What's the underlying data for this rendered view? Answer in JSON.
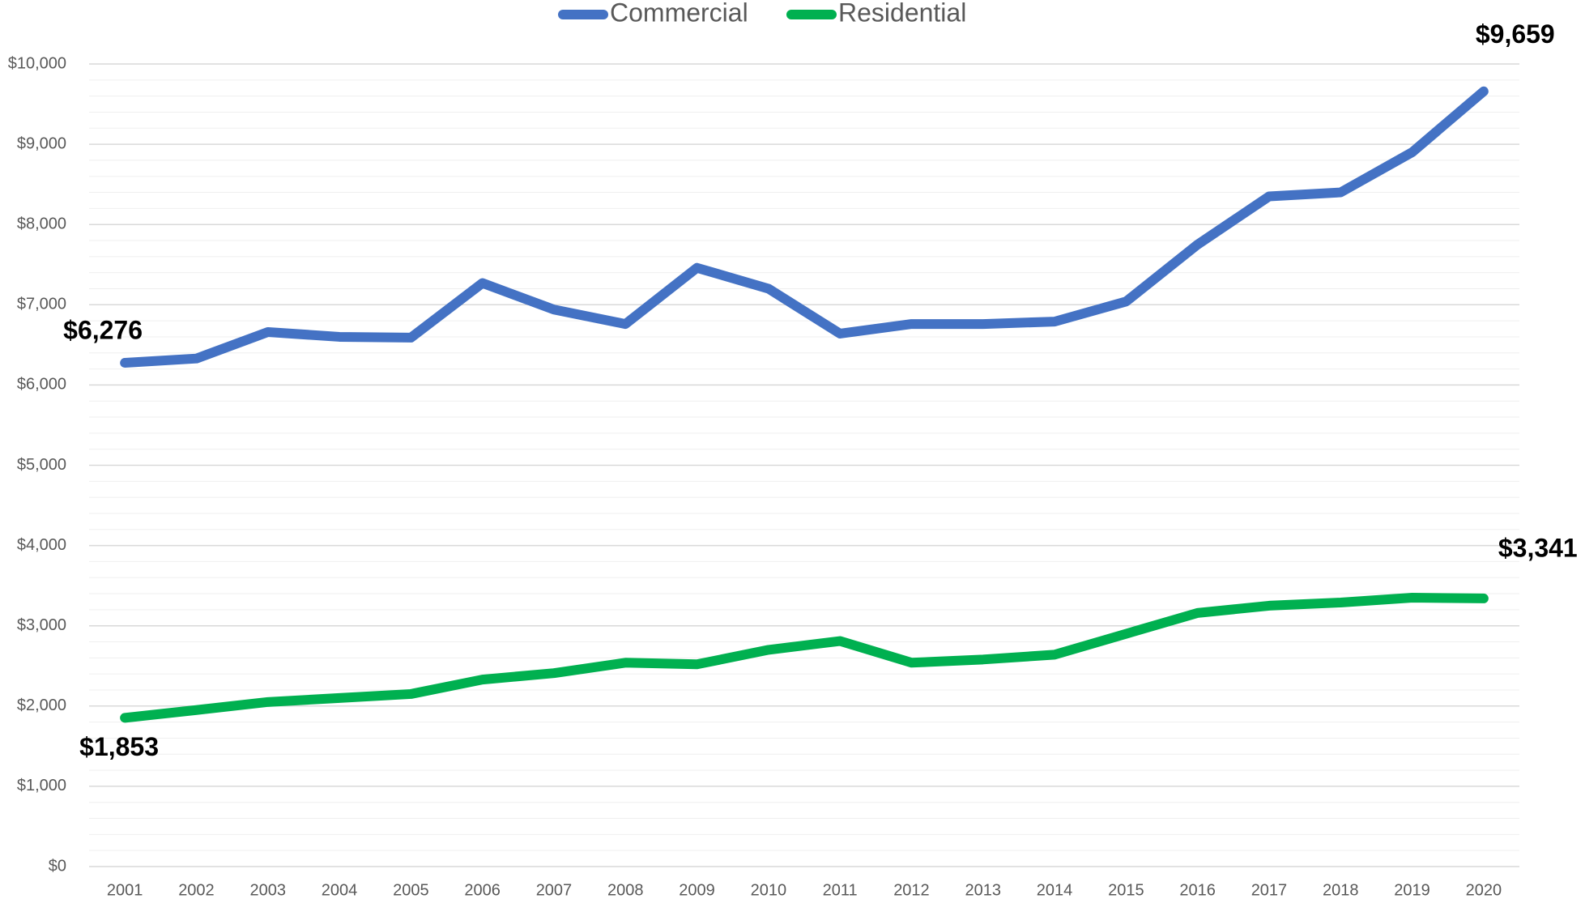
{
  "chart_data": {
    "type": "line",
    "categories": [
      "2001",
      "2002",
      "2003",
      "2004",
      "2005",
      "2006",
      "2007",
      "2008",
      "2009",
      "2010",
      "2011",
      "2012",
      "2013",
      "2014",
      "2015",
      "2016",
      "2017",
      "2018",
      "2019",
      "2020"
    ],
    "series": [
      {
        "name": "Commercial",
        "color": "#4472c4",
        "values": [
          6276,
          6330,
          6660,
          6600,
          6590,
          7270,
          6940,
          6760,
          7460,
          7200,
          6640,
          6760,
          6760,
          6790,
          7040,
          7750,
          8350,
          8400,
          8900,
          9659
        ],
        "value_labels": [
          "$6,276",
          null,
          null,
          null,
          null,
          null,
          null,
          null,
          null,
          null,
          null,
          null,
          null,
          null,
          null,
          null,
          null,
          null,
          null,
          "$9,659"
        ]
      },
      {
        "name": "Residential",
        "color": "#00b050",
        "values": [
          1853,
          1950,
          2050,
          2100,
          2150,
          2330,
          2410,
          2540,
          2520,
          2700,
          2810,
          2540,
          2580,
          2640,
          2900,
          3160,
          3250,
          3290,
          3350,
          3341
        ],
        "value_labels": [
          "$1,853",
          null,
          null,
          null,
          null,
          null,
          null,
          null,
          null,
          null,
          null,
          null,
          null,
          null,
          null,
          null,
          null,
          null,
          null,
          "$3,341"
        ]
      }
    ],
    "ylim": [
      0,
      10000
    ],
    "yticks": [
      {
        "value": 0,
        "label": "$0"
      },
      {
        "value": 1000,
        "label": "$1,000"
      },
      {
        "value": 2000,
        "label": "$2,000"
      },
      {
        "value": 3000,
        "label": "$3,000"
      },
      {
        "value": 4000,
        "label": "$4,000"
      },
      {
        "value": 5000,
        "label": "$5,000"
      },
      {
        "value": 6000,
        "label": "$6,000"
      },
      {
        "value": 7000,
        "label": "$7,000"
      },
      {
        "value": 8000,
        "label": "$8,000"
      },
      {
        "value": 9000,
        "label": "$9,000"
      },
      {
        "value": 10000,
        "label": "$10,000"
      }
    ],
    "minor_yticks": [
      200,
      400,
      600,
      800,
      1200,
      1400,
      1600,
      1800,
      2200,
      2400,
      2600,
      2800,
      3200,
      3400,
      3600,
      3800,
      4200,
      4400,
      4600,
      4800,
      5200,
      5400,
      5600,
      5800,
      6200,
      6400,
      6600,
      6800,
      7200,
      7400,
      7600,
      7800,
      8200,
      8400,
      8600,
      8800,
      9200,
      9400,
      9600,
      9800
    ],
    "grid": true,
    "legend": "top"
  }
}
